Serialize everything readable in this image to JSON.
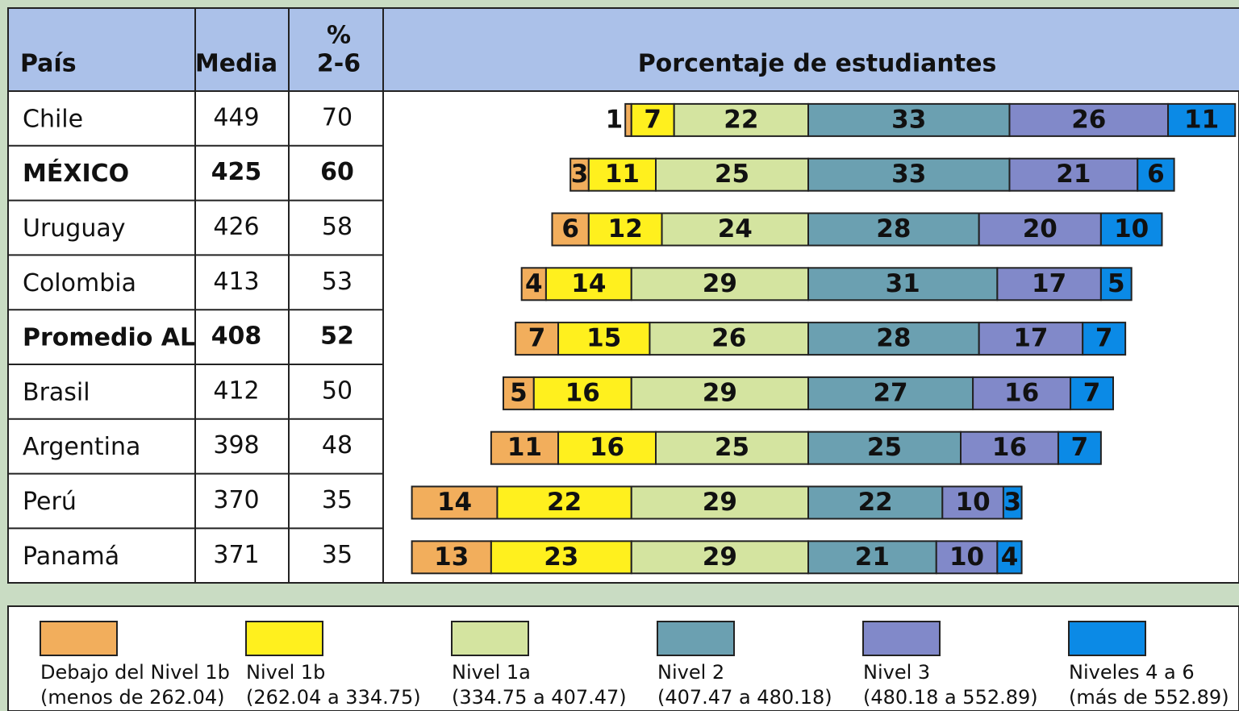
{
  "chart_data": {
    "type": "diverging_bar",
    "headers": {
      "country": "País",
      "mean": "Media",
      "pct": [
        "%",
        "2-6"
      ],
      "bars": "Porcentaje de estudiantes"
    },
    "categories": [
      "Chile",
      "MÉXICO",
      "Uruguay",
      "Colombia",
      "Promedio AL",
      "Brasil",
      "Argentina",
      "Perú",
      "Panamá"
    ],
    "bold": [
      false,
      true,
      false,
      false,
      true,
      false,
      false,
      false,
      false
    ],
    "mean": [
      449,
      425,
      426,
      413,
      408,
      412,
      398,
      370,
      371
    ],
    "pct": [
      70,
      60,
      58,
      53,
      52,
      50,
      48,
      35,
      35
    ],
    "left_series": 3,
    "series": [
      {
        "name": "Debajo del Nivel 1b",
        "range": "(menos de 262.04)",
        "color": "#f2ae5c",
        "values": [
          1,
          3,
          6,
          4,
          7,
          5,
          11,
          14,
          13
        ]
      },
      {
        "name": "Nivel 1b",
        "range": "(262.04 a 334.75)",
        "color": "#fff01e",
        "values": [
          7,
          11,
          12,
          14,
          15,
          16,
          16,
          22,
          23
        ]
      },
      {
        "name": "Nivel 1a",
        "range": "(334.75 a 407.47)",
        "color": "#d4e4a0",
        "values": [
          22,
          25,
          24,
          29,
          26,
          29,
          25,
          29,
          29
        ]
      },
      {
        "name": "Nivel 2",
        "range": "(407.47 a 480.18)",
        "color": "#6ba0b1",
        "values": [
          33,
          33,
          28,
          31,
          28,
          27,
          25,
          22,
          21
        ]
      },
      {
        "name": "Nivel 3",
        "range": "(480.18 a 552.89)",
        "color": "#8189c9",
        "values": [
          26,
          21,
          20,
          17,
          17,
          16,
          16,
          10,
          10
        ]
      },
      {
        "name": "Niveles 4 a 6",
        "range": "(más de 552.89)",
        "color": "#0b8ae6",
        "values": [
          11,
          6,
          10,
          5,
          7,
          7,
          7,
          3,
          4
        ]
      }
    ]
  }
}
